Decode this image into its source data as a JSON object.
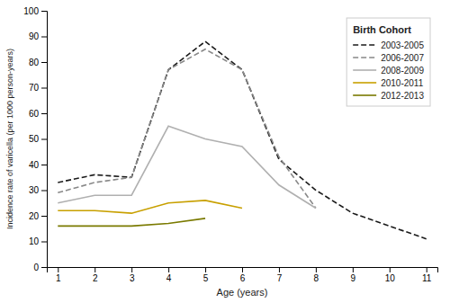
{
  "chart_data": {
    "type": "line",
    "xlabel": "Age (years)",
    "ylabel": "Incidence rate of varicella (per 1000 person-years)",
    "legend_title": "Birth Cohort",
    "legend": "upper-right",
    "grid": false,
    "x": [
      1,
      2,
      3,
      4,
      5,
      6,
      7,
      8,
      9,
      10,
      11
    ],
    "xlim": [
      0.7,
      11.3
    ],
    "xticks": [
      1,
      2,
      3,
      4,
      5,
      6,
      7,
      8,
      9,
      10,
      11
    ],
    "ylim": [
      0,
      100
    ],
    "yticks": [
      0,
      10,
      20,
      30,
      40,
      50,
      60,
      70,
      80,
      90,
      100
    ],
    "series": [
      {
        "name": "2003-2005",
        "color": "#1a1a1a",
        "line_style": "dashed",
        "values": [
          33,
          36,
          35,
          77,
          88,
          77,
          42,
          30,
          21,
          16,
          11
        ]
      },
      {
        "name": "2006-2007",
        "color": "#888888",
        "line_style": "dashed",
        "values": [
          29,
          33,
          35,
          77,
          85,
          77,
          43,
          23,
          null,
          null,
          null
        ]
      },
      {
        "name": "2008-2009",
        "color": "#b0b0b0",
        "line_style": "solid",
        "values": [
          25,
          28,
          28,
          55,
          50,
          47,
          32,
          23,
          null,
          null,
          null
        ]
      },
      {
        "name": "2010-2011",
        "color": "#c8a000",
        "line_style": "solid",
        "values": [
          22,
          22,
          21,
          25,
          26,
          23,
          null,
          null,
          null,
          null,
          null
        ]
      },
      {
        "name": "2012-2013",
        "color": "#7a7a00",
        "line_style": "solid",
        "values": [
          16,
          16,
          16,
          17,
          19,
          null,
          null,
          null,
          null,
          null,
          null
        ]
      }
    ]
  }
}
